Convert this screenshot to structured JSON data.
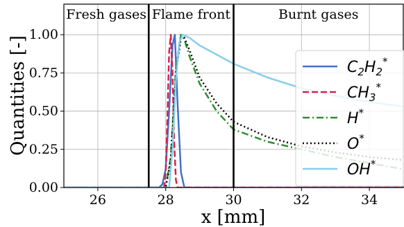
{
  "chart_data": {
    "type": "line",
    "xlabel": "x [mm]",
    "ylabel": "Quantities [-]",
    "xlim": [
      25,
      35
    ],
    "ylim": [
      0,
      1.2
    ],
    "xticks": [
      26,
      28,
      30,
      32,
      34
    ],
    "xtick_labels": [
      "26",
      "28",
      "30",
      "32",
      "34"
    ],
    "yticks": [
      0,
      0.25,
      0.5,
      0.75,
      1.0
    ],
    "ytick_labels": [
      "0.00",
      "0.25",
      "0.50",
      "0.75",
      "1.00"
    ],
    "grid": true,
    "legend_position": "right",
    "regions": [
      {
        "label": "Fresh gases",
        "x_start": 25,
        "x_end": 27.5
      },
      {
        "label": "Flame front",
        "x_start": 27.5,
        "x_end": 30
      },
      {
        "label": "Burnt gases",
        "x_start": 30,
        "x_end": 35
      }
    ],
    "boundaries": [
      27.5,
      30
    ],
    "series": [
      {
        "name": "C2H2*",
        "base": "C",
        "sub1": "2",
        "mid": "H",
        "sub2": "2",
        "color": "#4472c4",
        "dash": "solid",
        "x": [
          25,
          27.8,
          27.9,
          28.0,
          28.1,
          28.2,
          28.27,
          28.35,
          28.45,
          28.55,
          35
        ],
        "y": [
          0,
          0,
          0.02,
          0.12,
          0.5,
          0.93,
          1.0,
          0.55,
          0.1,
          0,
          0
        ]
      },
      {
        "name": "CH3*",
        "base": "CH",
        "sub1": "3",
        "mid": "",
        "sub2": "",
        "color": "#d62050",
        "dash": "dashed",
        "x": [
          25,
          27.95,
          28.0,
          28.05,
          28.1,
          28.15,
          28.2,
          28.25,
          28.3,
          28.35,
          35
        ],
        "y": [
          0,
          0,
          0.1,
          0.45,
          0.88,
          1.0,
          0.75,
          0.3,
          0.05,
          0,
          0
        ]
      },
      {
        "name": "H*",
        "base": "H",
        "sub1": "",
        "mid": "",
        "sub2": "",
        "color": "#2e8b2e",
        "dash": "dashdot",
        "x": [
          25,
          28.0,
          28.15,
          28.3,
          28.45,
          28.55,
          28.7,
          29.0,
          29.5,
          30.0,
          31.0,
          32.0,
          33.0,
          34.0,
          35.0
        ],
        "y": [
          0,
          0,
          0.2,
          0.78,
          1.0,
          0.97,
          0.86,
          0.68,
          0.5,
          0.38,
          0.3,
          0.25,
          0.2,
          0.16,
          0.12
        ]
      },
      {
        "name": "O*",
        "base": "O",
        "sub1": "",
        "mid": "",
        "sub2": "",
        "color": "#000000",
        "dash": "dotted",
        "x": [
          25,
          28.0,
          28.15,
          28.3,
          28.45,
          28.55,
          28.7,
          29.0,
          29.5,
          30.0,
          31.0,
          32.0,
          33.0,
          34.0,
          35.0
        ],
        "y": [
          0,
          0,
          0.18,
          0.75,
          0.98,
          0.98,
          0.9,
          0.72,
          0.55,
          0.43,
          0.33,
          0.27,
          0.23,
          0.2,
          0.18
        ]
      },
      {
        "name": "OH*",
        "base": "OH",
        "sub1": "",
        "mid": "",
        "sub2": "",
        "color": "#87ceeb",
        "dash": "solid",
        "x": [
          25,
          28.1,
          28.2,
          28.3,
          28.4,
          28.5,
          28.7,
          29.0,
          29.5,
          30.0,
          31.0,
          32.0,
          33.0,
          34.0,
          35.0
        ],
        "y": [
          0,
          0,
          0.25,
          0.7,
          0.95,
          1.0,
          0.98,
          0.93,
          0.87,
          0.81,
          0.72,
          0.65,
          0.6,
          0.56,
          0.53
        ]
      }
    ]
  }
}
